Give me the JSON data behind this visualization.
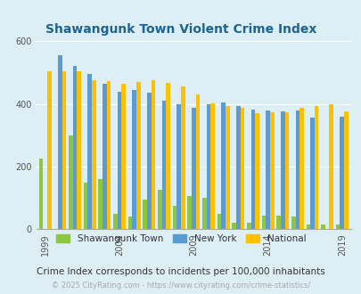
{
  "title": "Shawangunk Town Violent Crime Index",
  "title_color": "#1a6496",
  "subtitle": "Crime Index corresponds to incidents per 100,000 inhabitants",
  "footer": "© 2025 CityRating.com - https://www.cityrating.com/crime-statistics/",
  "years": [
    1999,
    2000,
    2001,
    2002,
    2003,
    2004,
    2005,
    2006,
    2007,
    2008,
    2009,
    2010,
    2011,
    2012,
    2013,
    2014,
    2015,
    2016,
    2017,
    2018,
    2019
  ],
  "shawangunk": [
    225,
    0,
    300,
    150,
    160,
    50,
    40,
    95,
    125,
    75,
    105,
    100,
    50,
    20,
    20,
    45,
    45,
    40,
    15,
    15,
    15
  ],
  "new_york": [
    0,
    555,
    520,
    495,
    465,
    440,
    445,
    435,
    410,
    400,
    388,
    400,
    405,
    393,
    382,
    380,
    375,
    380,
    355,
    0,
    360
  ],
  "national": [
    505,
    505,
    505,
    475,
    472,
    463,
    470,
    475,
    467,
    455,
    430,
    403,
    393,
    387,
    370,
    373,
    373,
    387,
    393,
    398,
    376
  ],
  "shawangunk_color": "#8dc63f",
  "new_york_color": "#5b9bd5",
  "national_color": "#ffc000",
  "bg_color": "#ddeef5",
  "plot_bg": "#ddeef5",
  "ylim": [
    0,
    600
  ],
  "yticks": [
    0,
    200,
    400,
    600
  ],
  "bar_width": 0.28,
  "xlabel_ticks": [
    1999,
    2004,
    2009,
    2014,
    2019
  ]
}
